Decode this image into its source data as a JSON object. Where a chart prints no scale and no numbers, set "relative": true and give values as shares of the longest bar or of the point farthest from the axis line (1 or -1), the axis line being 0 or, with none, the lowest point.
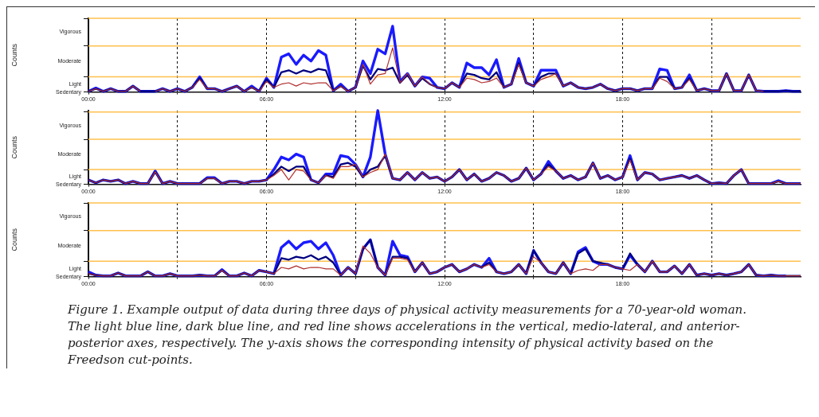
{
  "chart_data": [
    {
      "type": "line",
      "relative": true,
      "ylabel": "Counts",
      "xlim": [
        0,
        24
      ],
      "grid": "x",
      "marker": "none",
      "xticks": [
        {
          "value": 0,
          "label": "00:00"
        },
        {
          "value": 3,
          "label": null
        },
        {
          "value": 6,
          "label": "06:00"
        },
        {
          "value": 9,
          "label": null
        },
        {
          "value": 12,
          "label": "12:00"
        },
        {
          "value": 15,
          "label": null
        },
        {
          "value": 18,
          "label": "18:00"
        },
        {
          "value": 21,
          "label": null
        }
      ],
      "annotations": [
        "Sedentary",
        "Light",
        "Moderate",
        "Vigorous"
      ],
      "ref_lines": [
        {
          "axis": "y",
          "value": 0.23,
          "color": "#ffc04d"
        },
        {
          "axis": "y",
          "value": 0.7,
          "color": "#ffc04d"
        },
        {
          "axis": "y",
          "value": 1.12,
          "color": "#ffc04d"
        }
      ],
      "x": [
        0,
        0.25,
        0.5,
        0.75,
        1,
        1.25,
        1.5,
        1.75,
        2,
        2.25,
        2.5,
        2.75,
        3,
        3.25,
        3.5,
        3.75,
        4,
        4.25,
        4.5,
        4.75,
        5,
        5.25,
        5.5,
        5.75,
        6,
        6.25,
        6.5,
        6.75,
        7,
        7.25,
        7.5,
        7.75,
        8,
        8.25,
        8.5,
        8.75,
        9,
        9.25,
        9.5,
        9.75,
        10,
        10.25,
        10.5,
        10.75,
        11,
        11.25,
        11.5,
        11.75,
        12,
        12.25,
        12.5,
        12.75,
        13,
        13.25,
        13.5,
        13.75,
        14,
        14.25,
        14.5,
        14.75,
        15,
        15.25,
        15.5,
        15.75,
        16,
        16.25,
        16.5,
        16.75,
        17,
        17.25,
        17.5,
        17.75,
        18,
        18.25,
        18.5,
        18.75,
        19,
        19.25,
        19.5,
        19.75,
        20,
        20.25,
        20.5,
        20.75,
        21,
        21.25,
        21.5,
        21.75,
        22,
        22.25,
        22.5,
        22.75,
        23,
        23.25,
        23.5,
        23.75,
        24
      ],
      "series": [
        {
          "color": "#1a1aff",
          "values": [
            0.01,
            0.06,
            0.01,
            0.05,
            0.01,
            0.01,
            0.09,
            0.01,
            0.01,
            0.01,
            0.05,
            0.01,
            0.05,
            0.01,
            0.07,
            0.23,
            0.05,
            0.05,
            0.01,
            0.05,
            0.09,
            0.01,
            0.09,
            0.01,
            0.21,
            0.07,
            0.53,
            0.58,
            0.42,
            0.56,
            0.47,
            0.63,
            0.56,
            0.02,
            0.12,
            0.01,
            0.07,
            0.47,
            0.28,
            0.65,
            0.58,
            1,
            0.16,
            0.28,
            0.09,
            0.23,
            0.21,
            0.07,
            0.05,
            0.14,
            0.07,
            0.44,
            0.37,
            0.37,
            0.26,
            0.49,
            0.07,
            0.12,
            0.51,
            0.14,
            0.09,
            0.33,
            0.33,
            0.33,
            0.09,
            0.14,
            0.07,
            0.05,
            0.07,
            0.12,
            0.05,
            0.02,
            0.05,
            0.05,
            0.02,
            0.05,
            0.05,
            0.35,
            0.33,
            0.05,
            0.07,
            0.26,
            0.02,
            0.05,
            0.02,
            0.02,
            0.28,
            0.02,
            0.02,
            0.26,
            0.02,
            0.01,
            0.01,
            0.01,
            0.02,
            0.01,
            0.01
          ]
        },
        {
          "color": "#000080",
          "values": [
            0.01,
            0.05,
            0.01,
            0.05,
            0.01,
            0.01,
            0.09,
            0.01,
            0.01,
            0.01,
            0.05,
            0.01,
            0.05,
            0.01,
            0.07,
            0.21,
            0.05,
            0.05,
            0.01,
            0.05,
            0.09,
            0.01,
            0.07,
            0.01,
            0.19,
            0.07,
            0.3,
            0.33,
            0.28,
            0.33,
            0.3,
            0.35,
            0.33,
            0.02,
            0.09,
            0.01,
            0.07,
            0.4,
            0.19,
            0.35,
            0.33,
            0.37,
            0.14,
            0.26,
            0.09,
            0.21,
            0.12,
            0.07,
            0.05,
            0.14,
            0.07,
            0.28,
            0.26,
            0.21,
            0.19,
            0.3,
            0.07,
            0.12,
            0.44,
            0.14,
            0.09,
            0.23,
            0.28,
            0.28,
            0.09,
            0.14,
            0.07,
            0.05,
            0.07,
            0.12,
            0.05,
            0.02,
            0.05,
            0.05,
            0.02,
            0.05,
            0.05,
            0.23,
            0.23,
            0.05,
            0.07,
            0.21,
            0.02,
            0.05,
            0.02,
            0.02,
            0.28,
            0.02,
            0.02,
            0.26,
            0.02,
            0.01,
            0.01,
            0.01,
            0.02,
            0.01,
            0.01
          ]
        },
        {
          "color": "#b0302e",
          "values": [
            0.01,
            0.05,
            0.01,
            0.05,
            0.01,
            0.01,
            0.09,
            0.01,
            null,
            0.01,
            0.05,
            0.01,
            0.05,
            0.01,
            0.07,
            0.19,
            0.05,
            0.05,
            0.01,
            0.05,
            0.09,
            0.01,
            0.07,
            0.01,
            0.16,
            0.07,
            0.12,
            0.14,
            0.09,
            0.14,
            0.12,
            0.14,
            0.14,
            0.02,
            0.09,
            0.01,
            0.07,
            0.42,
            0.12,
            0.26,
            0.28,
            0.67,
            0.14,
            0.28,
            0.09,
            0.23,
            0.12,
            0.07,
            0.05,
            0.14,
            0.07,
            0.21,
            0.19,
            0.14,
            0.16,
            0.21,
            0.07,
            0.12,
            0.42,
            0.14,
            0.09,
            0.19,
            0.23,
            0.28,
            0.09,
            0.14,
            0.07,
            0.05,
            0.07,
            0.12,
            0.05,
            0.02,
            0.05,
            0.05,
            0.02,
            0.05,
            0.05,
            0.21,
            0.16,
            0.05,
            0.07,
            0.19,
            0.02,
            0.05,
            0.02,
            0.02,
            0.28,
            0.02,
            0.02,
            0.26,
            0.02,
            0.01,
            null,
            null,
            null,
            null,
            null
          ]
        }
      ]
    },
    {
      "type": "line",
      "relative": true,
      "ylabel": "Counts",
      "xlim": [
        0,
        24
      ],
      "grid": "x",
      "marker": "none",
      "xticks": [
        {
          "value": 0,
          "label": "00:00"
        },
        {
          "value": 3,
          "label": null
        },
        {
          "value": 6,
          "label": "06:00"
        },
        {
          "value": 9,
          "label": null
        },
        {
          "value": 12,
          "label": "12:00"
        },
        {
          "value": 15,
          "label": null
        },
        {
          "value": 18,
          "label": "18:00"
        },
        {
          "value": 21,
          "label": null
        }
      ],
      "annotations": [
        "Sedentary",
        "Light",
        "Moderate",
        "Vigorous"
      ],
      "ref_lines": [
        {
          "axis": "y",
          "value": 0.2,
          "color": "#ffc04d"
        },
        {
          "axis": "y",
          "value": 0.61,
          "color": "#ffc04d"
        },
        {
          "axis": "y",
          "value": 0.98,
          "color": "#ffc04d"
        }
      ],
      "x": [
        0,
        0.25,
        0.5,
        0.75,
        1,
        1.25,
        1.5,
        1.75,
        2,
        2.25,
        2.5,
        2.75,
        3,
        3.25,
        3.5,
        3.75,
        4,
        4.25,
        4.5,
        4.75,
        5,
        5.25,
        5.5,
        5.75,
        6,
        6.25,
        6.5,
        6.75,
        7,
        7.25,
        7.5,
        7.75,
        8,
        8.25,
        8.5,
        8.75,
        9,
        9.25,
        9.5,
        9.75,
        10,
        10.25,
        10.5,
        10.75,
        11,
        11.25,
        11.5,
        11.75,
        12,
        12.25,
        12.5,
        12.75,
        13,
        13.25,
        13.5,
        13.75,
        14,
        14.25,
        14.5,
        14.75,
        15,
        15.25,
        15.5,
        15.75,
        16,
        16.25,
        16.5,
        16.75,
        17,
        17.25,
        17.5,
        17.75,
        18,
        18.25,
        18.5,
        18.75,
        19,
        19.25,
        19.5,
        19.75,
        20,
        20.25,
        20.5,
        20.75,
        21,
        21.25,
        21.5,
        21.75,
        22,
        22.25,
        22.5,
        22.75,
        23,
        23.25,
        23.5,
        23.75,
        24
      ],
      "series": [
        {
          "color": "#1a1aff",
          "values": [
            0.06,
            0.02,
            0.06,
            0.04,
            0.06,
            0.01,
            0.04,
            0.01,
            0.01,
            0.18,
            0.01,
            0.04,
            0.01,
            0.01,
            0.01,
            0.01,
            0.09,
            0.09,
            0.01,
            0.04,
            0.04,
            0.01,
            0.04,
            0.04,
            0.06,
            0.2,
            0.37,
            0.33,
            0.41,
            0.37,
            0.06,
            0.02,
            0.14,
            0.14,
            0.39,
            0.37,
            0.27,
            0.1,
            0.37,
            1,
            0.41,
            0.08,
            0.06,
            0.16,
            0.06,
            0.16,
            0.08,
            0.1,
            0.04,
            0.1,
            0.2,
            0.06,
            0.14,
            0.04,
            0.08,
            0.16,
            0.12,
            0.04,
            0.08,
            0.22,
            0.06,
            0.14,
            0.31,
            0.18,
            0.08,
            0.12,
            0.06,
            0.1,
            0.29,
            0.08,
            0.12,
            0.06,
            0.1,
            0.39,
            0.06,
            0.16,
            0.14,
            0.06,
            0.08,
            0.1,
            0.12,
            0.08,
            0.12,
            0.06,
            0.01,
            0.02,
            0.01,
            0.12,
            0.2,
            0.01,
            0.01,
            0.01,
            0.01,
            0.05,
            0.01,
            0.01,
            0.01
          ]
        },
        {
          "color": "#000080",
          "values": [
            0.06,
            0.02,
            0.06,
            0.04,
            0.06,
            0.01,
            0.04,
            0.01,
            0.01,
            0.17,
            0.01,
            0.04,
            0.01,
            0.01,
            0.01,
            0.01,
            0.08,
            0.08,
            0.01,
            0.04,
            0.04,
            0.01,
            0.04,
            0.04,
            0.06,
            0.14,
            0.24,
            0.18,
            0.24,
            0.24,
            0.06,
            0.02,
            0.12,
            0.1,
            0.27,
            0.29,
            0.24,
            0.1,
            0.2,
            0.24,
            0.39,
            0.08,
            0.06,
            0.16,
            0.06,
            0.16,
            0.08,
            0.1,
            0.04,
            0.1,
            0.2,
            0.06,
            0.14,
            0.04,
            0.08,
            0.16,
            0.12,
            0.04,
            0.08,
            0.22,
            0.06,
            0.14,
            0.27,
            0.18,
            0.08,
            0.12,
            0.06,
            0.1,
            0.29,
            0.08,
            0.12,
            0.06,
            0.1,
            0.35,
            0.06,
            0.16,
            0.14,
            0.06,
            0.08,
            0.1,
            0.12,
            0.08,
            0.12,
            0.06,
            0.01,
            0.02,
            0.01,
            0.12,
            0.2,
            0.01,
            0.01,
            0.01,
            0.01,
            0.04,
            0.01,
            0.01,
            0.01
          ]
        },
        {
          "color": "#b0302e",
          "values": [
            0.06,
            0.02,
            0.06,
            0.04,
            0.06,
            0.01,
            0.04,
            0.01,
            0.01,
            0.17,
            0.01,
            0.04,
            0.01,
            0.01,
            0.01,
            0.01,
            0.08,
            0.08,
            0.01,
            0.04,
            0.04,
            0.01,
            0.04,
            0.04,
            0.06,
            0.12,
            0.2,
            0.06,
            0.2,
            0.18,
            0.06,
            0.02,
            0.12,
            0.08,
            0.24,
            0.24,
            0.27,
            0.1,
            0.16,
            0.2,
            0.41,
            0.08,
            0.06,
            0.16,
            0.06,
            0.16,
            0.08,
            0.1,
            0.04,
            0.1,
            0.2,
            0.06,
            0.14,
            0.04,
            0.08,
            0.16,
            0.12,
            0.04,
            0.08,
            0.22,
            0.06,
            0.14,
            0.24,
            0.18,
            0.08,
            0.12,
            0.06,
            0.1,
            0.29,
            0.08,
            0.12,
            0.06,
            0.1,
            0.33,
            0.06,
            0.16,
            0.14,
            0.06,
            0.08,
            0.1,
            0.12,
            0.08,
            0.12,
            0.06,
            0.01,
            0.02,
            0.01,
            0.12,
            0.2,
            0.01,
            0.01,
            0.01,
            0.01,
            0.04,
            0.01,
            0.01,
            0.01
          ]
        }
      ]
    },
    {
      "type": "line",
      "relative": true,
      "ylabel": "Counts",
      "xlim": [
        0,
        24
      ],
      "grid": "x",
      "marker": "none",
      "xticks": [
        {
          "value": 0,
          "label": "00:00"
        },
        {
          "value": 3,
          "label": null
        },
        {
          "value": 6,
          "label": "06:00"
        },
        {
          "value": 9,
          "label": null
        },
        {
          "value": 12,
          "label": "12:00"
        },
        {
          "value": 15,
          "label": null
        },
        {
          "value": 18,
          "label": "18:00"
        },
        {
          "value": 21,
          "label": null
        }
      ],
      "ref_lines": [
        {
          "axis": "y",
          "value": 0.42,
          "color": "#ffc04d"
        },
        {
          "axis": "y",
          "value": 1.25,
          "color": "#ffc04d"
        },
        {
          "axis": "y",
          "value": 2.0,
          "color": "#ffc04d"
        }
      ],
      "x": [
        0,
        0.25,
        0.5,
        0.75,
        1,
        1.25,
        1.5,
        1.75,
        2,
        2.25,
        2.5,
        2.75,
        3,
        3.25,
        3.5,
        3.75,
        4,
        4.25,
        4.5,
        4.75,
        5,
        5.25,
        5.5,
        5.75,
        6,
        6.25,
        6.5,
        6.75,
        7,
        7.25,
        7.5,
        7.75,
        8,
        8.25,
        8.5,
        8.75,
        9,
        9.25,
        9.5,
        9.75,
        10,
        10.25,
        10.5,
        10.75,
        11,
        11.25,
        11.5,
        11.75,
        12,
        12.25,
        12.5,
        12.75,
        13,
        13.25,
        13.5,
        13.75,
        14,
        14.25,
        14.5,
        14.75,
        15,
        15.25,
        15.5,
        15.75,
        16,
        16.25,
        16.5,
        16.75,
        17,
        17.25,
        17.5,
        17.75,
        18,
        18.25,
        18.5,
        18.75,
        19,
        19.25,
        19.5,
        19.75,
        20,
        20.25,
        20.5,
        20.75,
        21,
        21.25,
        21.5,
        21.75,
        22,
        22.25,
        22.5,
        22.75,
        23,
        23.25,
        23.5,
        23.75,
        24
      ],
      "series": [
        {
          "color": "#1a1aff",
          "values": [
            0.13,
            0.04,
            0.02,
            0.02,
            0.1,
            0.02,
            0.02,
            0.02,
            0.13,
            0.02,
            0.02,
            0.08,
            0.02,
            0.02,
            0.02,
            0.04,
            0.02,
            0.02,
            0.19,
            0.02,
            0.02,
            0.1,
            0.02,
            0.17,
            0.13,
            0.08,
            0.79,
            0.96,
            0.75,
            0.92,
            0.96,
            0.75,
            0.92,
            0.58,
            0.04,
            0.25,
            0.08,
            0.75,
            1,
            0.25,
            0.04,
            0.96,
            0.58,
            0.54,
            0.13,
            0.38,
            0.08,
            0.13,
            0.25,
            0.33,
            0.13,
            0.21,
            0.33,
            0.25,
            0.5,
            0.13,
            0.08,
            0.13,
            0.33,
            0.08,
            0.71,
            0.38,
            0.13,
            0.08,
            0.38,
            0.08,
            0.67,
            0.79,
            0.42,
            0.33,
            0.33,
            0.25,
            0.21,
            0.58,
            0.33,
            0.13,
            0.42,
            0.13,
            0.13,
            0.29,
            0.08,
            0.33,
            0.04,
            0.08,
            0.04,
            0.08,
            0.04,
            0.08,
            0.13,
            0.33,
            0.04,
            0.02,
            0.04,
            0.02,
            0.02,
            null,
            null
          ]
        },
        {
          "color": "#000080",
          "values": [
            0.08,
            0.04,
            0.02,
            0.02,
            0.1,
            0.02,
            0.02,
            0.02,
            0.13,
            0.02,
            0.02,
            0.08,
            0.02,
            0.02,
            0.02,
            0.04,
            0.02,
            0.02,
            0.17,
            0.02,
            0.02,
            0.1,
            0.02,
            0.17,
            0.13,
            0.08,
            0.5,
            0.46,
            0.54,
            0.5,
            0.58,
            0.46,
            0.54,
            0.38,
            0.04,
            0.25,
            0.08,
            0.75,
            1,
            0.25,
            0.04,
            0.54,
            0.54,
            0.5,
            0.13,
            0.38,
            0.08,
            0.13,
            0.25,
            0.33,
            0.13,
            0.21,
            0.33,
            0.25,
            0.38,
            0.13,
            0.08,
            0.13,
            0.33,
            0.08,
            0.71,
            0.38,
            0.13,
            0.08,
            0.38,
            0.08,
            0.63,
            0.75,
            0.42,
            0.38,
            0.33,
            0.25,
            0.21,
            0.63,
            0.33,
            0.13,
            0.42,
            0.13,
            0.13,
            0.29,
            0.08,
            0.33,
            0.04,
            0.08,
            0.04,
            0.08,
            0.04,
            0.08,
            0.13,
            0.33,
            0.04,
            0.02,
            0.04,
            0.02,
            0.02,
            0.02,
            0.02
          ]
        },
        {
          "color": "#b0302e",
          "values": [
            0.08,
            0.04,
            0.02,
            0.02,
            0.1,
            0.02,
            0.02,
            0.02,
            0.13,
            0.02,
            0.02,
            0.08,
            0.02,
            0.02,
            0.02,
            0.04,
            0.02,
            0.02,
            0.17,
            0.02,
            0.02,
            0.1,
            0.02,
            0.17,
            0.13,
            0.08,
            0.25,
            0.21,
            0.29,
            0.21,
            0.25,
            0.25,
            0.21,
            0.21,
            0.04,
            0.25,
            0.08,
            0.83,
            0.63,
            0.25,
            0.04,
            0.5,
            0.5,
            0.46,
            0.13,
            0.38,
            0.08,
            0.13,
            0.25,
            0.33,
            0.13,
            0.21,
            0.33,
            0.25,
            0.33,
            0.13,
            0.08,
            0.13,
            0.33,
            0.08,
            0.54,
            0.38,
            0.13,
            0.08,
            0.38,
            0.08,
            0.17,
            0.21,
            0.17,
            0.33,
            0.33,
            0.25,
            0.21,
            0.17,
            0.33,
            0.13,
            0.42,
            0.13,
            0.13,
            0.29,
            0.08,
            0.33,
            0.04,
            0.08,
            0.04,
            0.08,
            0.04,
            0.08,
            0.13,
            0.33,
            0.04,
            0.02,
            0.04,
            0.02,
            0.02,
            0.02,
            0.02
          ]
        }
      ],
      "annotations": [
        "Sedentary",
        "Light",
        "Moderate",
        "Vigorous",
        "Figure 1. Example output of data during three days of physical activity measurements for a 70-year-old woman. The light blue line, dark blue line, and red line shows accelerations in the vertical, medio-lateral, and anterior-posterior axes, respectively. The y-axis shows the corresponding intensity of physical activity based on the Freedson cut-points."
      ]
    }
  ]
}
